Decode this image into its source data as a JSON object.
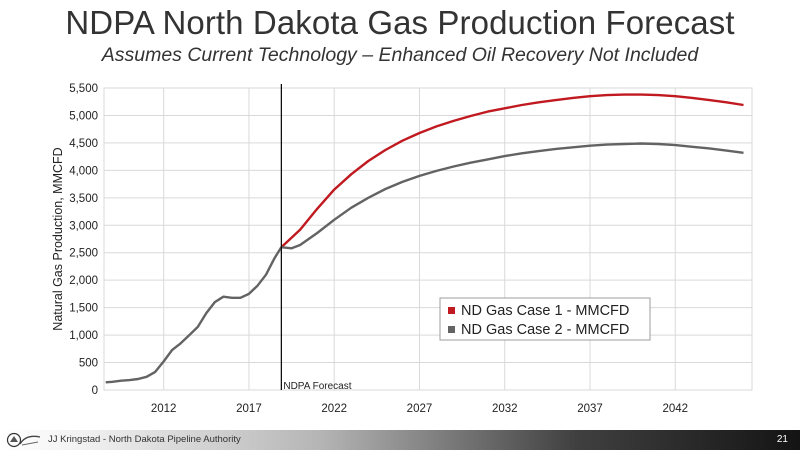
{
  "slide": {
    "title": "NDPA North Dakota Gas Production Forecast",
    "subtitle": "Assumes Current Technology – Enhanced Oil Recovery Not Included"
  },
  "footer": {
    "author": "JJ Kringstad - North Dakota Pipeline Authority",
    "page": "21"
  },
  "colors": {
    "case1": "#c0191f",
    "case2": "#636363",
    "history": "#636363"
  },
  "chart_data": {
    "type": "line",
    "title": "",
    "xlabel": "",
    "ylabel": "Natural Gas Production, MMCFD",
    "xlim": [
      2008.5,
      2046.5
    ],
    "ylim": [
      0,
      5500
    ],
    "x_ticks": [
      "2012",
      "2017",
      "2022",
      "2027",
      "2032",
      "2037",
      "2042"
    ],
    "y_ticks": [
      "0",
      "500",
      "1,000",
      "1,500",
      "2,000",
      "2,500",
      "3,000",
      "3,500",
      "4,000",
      "4,500",
      "5,000",
      "5,500"
    ],
    "grid": true,
    "legend": "bottom-right",
    "annotation": {
      "x": 2018.9,
      "label": "NDPA Forecast"
    },
    "series": [
      {
        "name": "",
        "key": "history",
        "x": [
          2008.6,
          2009.0,
          2009.5,
          2010.0,
          2010.5,
          2011.0,
          2011.5,
          2012.0,
          2012.5,
          2013.0,
          2013.5,
          2014.0,
          2014.5,
          2015.0,
          2015.5,
          2016.0,
          2016.5,
          2017.0,
          2017.5,
          2018.0,
          2018.5,
          2018.9
        ],
        "y": [
          140,
          150,
          170,
          180,
          200,
          240,
          330,
          520,
          730,
          850,
          1000,
          1150,
          1400,
          1600,
          1700,
          1680,
          1680,
          1750,
          1900,
          2100,
          2400,
          2600
        ]
      },
      {
        "name": "ND Gas Case 1 - MMCFD",
        "key": "case1",
        "x": [
          2018.9,
          2020,
          2021,
          2022,
          2023,
          2024,
          2025,
          2026,
          2027,
          2028,
          2029,
          2030,
          2031,
          2032,
          2033,
          2034,
          2035,
          2036,
          2037,
          2038,
          2039,
          2040,
          2041,
          2042,
          2043,
          2044,
          2045,
          2046
        ],
        "y": [
          2600,
          2920,
          3300,
          3650,
          3930,
          4170,
          4370,
          4540,
          4680,
          4800,
          4900,
          4990,
          5070,
          5130,
          5190,
          5240,
          5280,
          5320,
          5350,
          5370,
          5380,
          5380,
          5370,
          5350,
          5320,
          5280,
          5240,
          5190
        ]
      },
      {
        "name": "ND Gas Case 2 - MMCFD",
        "key": "case2",
        "x": [
          2018.9,
          2019.5,
          2020,
          2021,
          2022,
          2023,
          2024,
          2025,
          2026,
          2027,
          2028,
          2029,
          2030,
          2031,
          2032,
          2033,
          2034,
          2035,
          2036,
          2037,
          2038,
          2039,
          2040,
          2041,
          2042,
          2043,
          2044,
          2045,
          2046
        ],
        "y": [
          2600,
          2580,
          2640,
          2860,
          3100,
          3320,
          3500,
          3660,
          3790,
          3900,
          3990,
          4070,
          4140,
          4200,
          4260,
          4310,
          4350,
          4390,
          4420,
          4450,
          4470,
          4480,
          4490,
          4480,
          4460,
          4430,
          4400,
          4360,
          4320
        ]
      }
    ]
  }
}
